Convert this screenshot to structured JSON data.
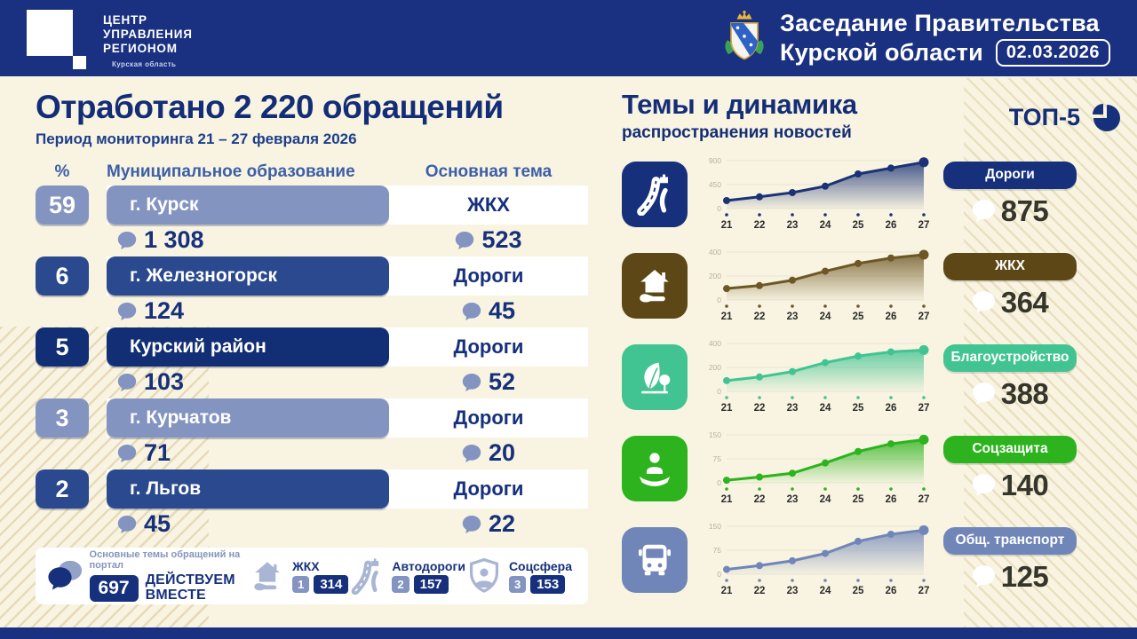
{
  "header": {
    "logo": {
      "line1": "ЦЕНТР",
      "line2": "УПРАВЛЕНИЯ",
      "line3": "РЕГИОНОМ",
      "region": "Курская область"
    },
    "title_line1": "Заседание Правительства",
    "title_line2": "Курской области",
    "date": "02.03.2026"
  },
  "left": {
    "title": "Отработано 2 220 обращений",
    "subtitle": "Период мониторинга 21 – 27 февраля 2026",
    "columns": {
      "percent": "%",
      "municipality": "Муниципальное образование",
      "theme": "Основная тема"
    },
    "rows": [
      {
        "percent": "59",
        "municipality": "г. Курск",
        "count": "1 308",
        "theme": "ЖКХ",
        "theme_count": "523",
        "tone": "light"
      },
      {
        "percent": "6",
        "municipality": "г. Железногорск",
        "count": "124",
        "theme": "Дороги",
        "theme_count": "45",
        "tone": "dark"
      },
      {
        "percent": "5",
        "municipality": "Курский район",
        "count": "103",
        "theme": "Дороги",
        "theme_count": "52",
        "tone": "navy"
      },
      {
        "percent": "3",
        "municipality": "г. Курчатов",
        "count": "71",
        "theme": "Дороги",
        "theme_count": "20",
        "tone": "light"
      },
      {
        "percent": "2",
        "municipality": "г. Льгов",
        "count": "45",
        "theme": "Дороги",
        "theme_count": "22",
        "tone": "dark"
      }
    ],
    "footer": {
      "caption": "Основные темы обращений на портал",
      "total": "697",
      "brand_line1": "ДЕЙСТВУЕМ",
      "brand_line2": "ВМЕСТЕ",
      "items": [
        {
          "label": "ЖКХ",
          "rank": "1",
          "count": "314",
          "icon": "house-hand-icon"
        },
        {
          "label": "Автодороги",
          "rank": "2",
          "count": "157",
          "icon": "road-icon"
        },
        {
          "label": "Соцсфера",
          "rank": "3",
          "count": "153",
          "icon": "shield-person-icon"
        }
      ]
    }
  },
  "right": {
    "title": "Темы и динамика",
    "subtitle": "распространения новостей",
    "top5": "ТОП-5"
  },
  "chart_data": [
    {
      "type": "area",
      "title": "Дороги",
      "value": "875",
      "icon": "road-icon",
      "x": [
        "21",
        "22",
        "23",
        "24",
        "25",
        "26",
        "27"
      ],
      "values": [
        150,
        220,
        300,
        420,
        650,
        760,
        870
      ],
      "yticks": [
        0,
        450,
        900
      ],
      "ylim": [
        0,
        900
      ],
      "color": "#1b3376",
      "badge_color": "#16307c",
      "icon_bg": "#16307c"
    },
    {
      "type": "area",
      "title": "ЖКХ",
      "value": "364",
      "icon": "house-hand-icon",
      "x": [
        "21",
        "22",
        "23",
        "24",
        "25",
        "26",
        "27"
      ],
      "values": [
        95,
        120,
        165,
        240,
        305,
        350,
        378
      ],
      "yticks": [
        0,
        200,
        400
      ],
      "ylim": [
        0,
        400
      ],
      "color": "#6d5724",
      "badge_color": "#5d4716",
      "icon_bg": "#5d4716"
    },
    {
      "type": "area",
      "title": "Благоустройство",
      "value": "388",
      "icon": "leaf-icon",
      "x": [
        "21",
        "22",
        "23",
        "24",
        "25",
        "26",
        "27"
      ],
      "values": [
        90,
        120,
        165,
        240,
        295,
        330,
        345
      ],
      "yticks": [
        0,
        200,
        400
      ],
      "ylim": [
        0,
        400
      ],
      "color": "#41c492",
      "badge_color": "#41c492",
      "icon_bg": "#41c492"
    },
    {
      "type": "area",
      "title": "Соцзащита",
      "value": "140",
      "icon": "person-hand-icon",
      "x": [
        "21",
        "22",
        "23",
        "24",
        "25",
        "26",
        "27"
      ],
      "values": [
        8,
        18,
        30,
        62,
        98,
        122,
        135
      ],
      "yticks": [
        0,
        75,
        150
      ],
      "ylim": [
        0,
        150
      ],
      "color": "#2cb31d",
      "badge_color": "#2cb31d",
      "icon_bg": "#2cb31d"
    },
    {
      "type": "area",
      "title": "Общ. транспорт",
      "value": "125",
      "icon": "bus-icon",
      "x": [
        "21",
        "22",
        "23",
        "24",
        "25",
        "26",
        "27"
      ],
      "values": [
        15,
        27,
        42,
        65,
        103,
        125,
        138
      ],
      "yticks": [
        0,
        75,
        150
      ],
      "ylim": [
        0,
        150
      ],
      "color": "#7186b8",
      "badge_color": "#7186b8",
      "icon_bg": "#7186b8"
    }
  ],
  "colors": {
    "header_bg": "#1a3080",
    "background": "#f8f4e1",
    "dark_navy": "#16307c",
    "tones": {
      "light": "#8494c1",
      "dark": "#2a498e",
      "navy": "#122e74"
    },
    "footer_icon": "#a9b6d3"
  }
}
